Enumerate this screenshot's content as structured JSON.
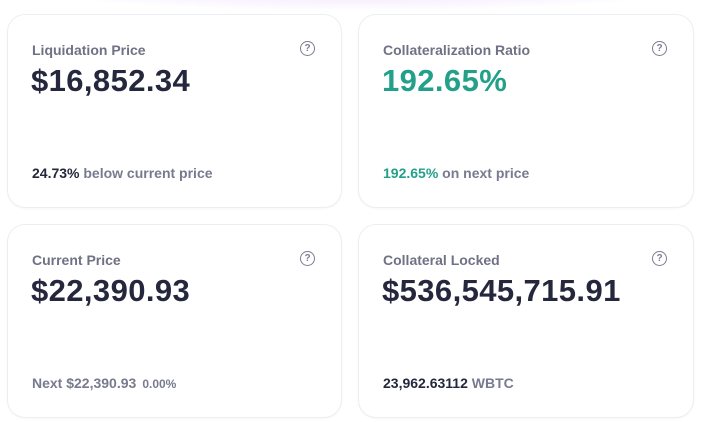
{
  "colors": {
    "accent_green": "#22a08a",
    "text_dark": "#25273d",
    "text_muted": "#787a8f"
  },
  "cards": {
    "liquidation": {
      "label": "Liquidation Price",
      "value": "$16,852.34",
      "foot_strong": "24.73%",
      "foot_text": "below current price",
      "help_icon": "question-circle-icon"
    },
    "collateralization": {
      "label": "Collateralization Ratio",
      "value": "192.65%",
      "foot_strong": "192.65%",
      "foot_text": "on next price",
      "help_icon": "question-circle-icon"
    },
    "current_price": {
      "label": "Current Price",
      "value": "$22,390.93",
      "foot_text": "Next $22,390.93",
      "foot_change": "0.00%",
      "help_icon": "question-circle-icon"
    },
    "collateral_locked": {
      "label": "Collateral Locked",
      "value": "$536,545,715.91",
      "foot_strong": "23,962.63112",
      "foot_text": "WBTC",
      "help_icon": "question-circle-icon"
    }
  }
}
